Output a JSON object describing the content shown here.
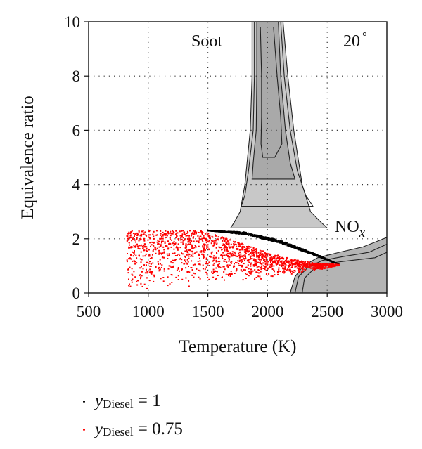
{
  "chart_data": {
    "type": "scatter",
    "xlabel": "Temperature (K)",
    "ylabel": "Equivalence ratio",
    "xlim": [
      500,
      3000
    ],
    "ylim": [
      0,
      10
    ],
    "xticks": [
      "500",
      "1000",
      "1500",
      "2000",
      "2500",
      "3000"
    ],
    "yticks": [
      "0",
      "2",
      "4",
      "6",
      "8",
      "10"
    ],
    "grid": "dotted",
    "annotations": {
      "soot": "Soot",
      "angle": "20",
      "angle_unit": "°",
      "nox_main": "NO",
      "nox_sub": "x"
    },
    "soot_contours": [
      {
        "level": 1,
        "left": [
          [
            1870,
            10
          ],
          [
            1870,
            8
          ],
          [
            1855,
            6
          ],
          [
            1810,
            4
          ],
          [
            1770,
            3
          ],
          [
            1720,
            2.6
          ],
          [
            1690,
            2.4
          ]
        ],
        "right": [
          [
            2130,
            10
          ],
          [
            2170,
            8
          ],
          [
            2220,
            6
          ],
          [
            2290,
            4
          ],
          [
            2360,
            3
          ],
          [
            2450,
            2.6
          ],
          [
            2500,
            2.4
          ]
        ]
      },
      {
        "level": 2,
        "left": [
          [
            1890,
            10
          ],
          [
            1890,
            8
          ],
          [
            1880,
            6
          ],
          [
            1840,
            4.5
          ],
          [
            1810,
            3.6
          ],
          [
            1780,
            3.2
          ]
        ],
        "right": [
          [
            2110,
            10
          ],
          [
            2140,
            8
          ],
          [
            2190,
            6
          ],
          [
            2250,
            4.5
          ],
          [
            2320,
            3.6
          ],
          [
            2380,
            3.2
          ]
        ]
      },
      {
        "level": 3,
        "left": [
          [
            1910,
            10
          ],
          [
            1910,
            8
          ],
          [
            1905,
            6
          ],
          [
            1880,
            4.8
          ],
          [
            1870,
            4.2
          ]
        ],
        "right": [
          [
            2090,
            10
          ],
          [
            2110,
            8
          ],
          [
            2150,
            6
          ],
          [
            2190,
            4.8
          ],
          [
            2230,
            4.2
          ]
        ]
      },
      {
        "level": 4,
        "left": [
          [
            1940,
            9.8
          ],
          [
            1950,
            8
          ],
          [
            1950,
            6.5
          ],
          [
            1945,
            5.5
          ],
          [
            1960,
            5.0
          ]
        ],
        "right": [
          [
            2050,
            9.8
          ],
          [
            2080,
            8
          ],
          [
            2110,
            6.5
          ],
          [
            2120,
            5.5
          ],
          [
            2060,
            5.0
          ]
        ]
      }
    ],
    "nox_contours": [
      {
        "level": 1,
        "points": [
          [
            2190,
            0
          ],
          [
            2230,
            0.6
          ],
          [
            2300,
            1.0
          ],
          [
            2420,
            1.3
          ],
          [
            2600,
            1.5
          ],
          [
            2800,
            1.7
          ],
          [
            3000,
            2.05
          ]
        ]
      },
      {
        "level": 2,
        "points": [
          [
            2230,
            0
          ],
          [
            2260,
            0.6
          ],
          [
            2340,
            0.95
          ],
          [
            2460,
            1.2
          ],
          [
            2640,
            1.35
          ],
          [
            2850,
            1.5
          ],
          [
            3000,
            1.8
          ]
        ]
      },
      {
        "level": 3,
        "points": [
          [
            2290,
            0
          ],
          [
            2310,
            0.55
          ],
          [
            2390,
            0.9
          ],
          [
            2520,
            1.1
          ],
          [
            2700,
            1.2
          ],
          [
            2900,
            1.3
          ],
          [
            3000,
            1.5
          ]
        ]
      }
    ],
    "series": [
      {
        "name": "y_Diesel = 1",
        "color": "#000000",
        "envelope": {
          "upper": [
            [
              1500,
              2.3
            ],
            [
              1800,
              2.25
            ],
            [
              2100,
              1.95
            ],
            [
              2400,
              1.45
            ],
            [
              2600,
              1.05
            ]
          ],
          "lower": [
            [
              1500,
              2.3
            ],
            [
              1800,
              2.0
            ],
            [
              2100,
              1.65
            ],
            [
              2400,
              1.25
            ],
            [
              2600,
              1.05
            ]
          ]
        }
      },
      {
        "name": "y_Diesel = 0.75",
        "color": "#ff0000",
        "envelope": {
          "upper": [
            [
              1450,
              2.3
            ],
            [
              1600,
              2.1
            ],
            [
              1800,
              1.8
            ],
            [
              2000,
              1.5
            ],
            [
              2200,
              1.25
            ],
            [
              2400,
              1.1
            ],
            [
              2600,
              1.05
            ]
          ],
          "lower": [
            [
              820,
              0.0
            ],
            [
              1100,
              0.1
            ],
            [
              1400,
              0.25
            ],
            [
              1700,
              0.4
            ],
            [
              2000,
              0.55
            ],
            [
              2300,
              0.75
            ],
            [
              2600,
              1.0
            ]
          ]
        }
      }
    ],
    "legend": {
      "placement": "bottom",
      "entries": [
        {
          "symbol": "y",
          "subscript": "Diesel",
          "rest": " = 1",
          "color": "#000000"
        },
        {
          "symbol": "y",
          "subscript": "Diesel",
          "rest": " = 0.75",
          "color": "#ff0000"
        }
      ]
    }
  }
}
